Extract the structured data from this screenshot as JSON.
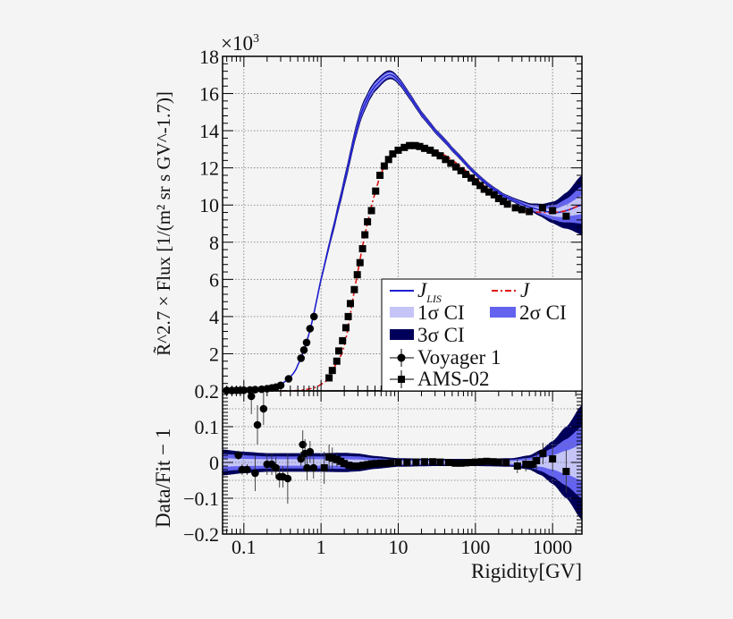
{
  "chart_data": [
    {
      "type": "line",
      "panel": "top",
      "ylabel": "R̃^2.7 × Flux [1/(m² sr s GV^-1.7)]",
      "ylabel_parts": {
        "main": "R̃",
        "exp": "2.7",
        "rest": "× Flux [1/(m",
        "exp2": "2",
        "rest2": " sr s GV",
        "exp3": "-1.7",
        "end": ")]"
      },
      "y_multiplier": "×10",
      "y_multiplier_exp": "3",
      "xscale": "log",
      "xlim": [
        0.053,
        2400
      ],
      "ylim": [
        0,
        18
      ],
      "yticks": [
        "2",
        "4",
        "6",
        "8",
        "10",
        "12",
        "14",
        "16",
        "18"
      ],
      "grid": true,
      "legend_position": "bottom-right",
      "legend": {
        "jlis": "J",
        "jlis_sub": "LIS",
        "j": "J",
        "ci1": "1σ CI",
        "ci1_sym": "1",
        "ci2": "2σ CI",
        "ci2_sym": "2",
        "ci3": "3σ CI",
        "ci3_sym": "3",
        "voyager": "Voyager 1",
        "ams": "AMS-02"
      },
      "colors": {
        "jlis": "#1f1fd0",
        "j": "#e01010",
        "ci1": "#c4c4f6",
        "ci2": "#6363f0",
        "ci3": "#00005a",
        "points": "#000000"
      },
      "series": [
        {
          "name": "J_LIS",
          "style": "solid",
          "x": [
            0.053,
            0.1,
            0.2,
            0.3,
            0.4,
            0.5,
            0.7,
            1,
            1.5,
            2,
            3,
            4,
            5,
            7.5,
            10,
            15,
            20,
            30,
            50,
            100,
            200,
            300,
            500,
            1000,
            1500,
            2400
          ],
          "y": [
            0.02,
            0.04,
            0.12,
            0.35,
            0.75,
            1.4,
            3.1,
            6.0,
            9.0,
            11.25,
            14.3,
            15.7,
            16.4,
            17.0,
            16.7,
            15.7,
            14.9,
            14.0,
            13.0,
            11.7,
            10.7,
            10.3,
            9.9,
            9.6,
            9.7,
            10.0
          ]
        },
        {
          "name": "J",
          "style": "dash-dot",
          "x": [
            0.3,
            0.5,
            0.8,
            1,
            1.27,
            1.6,
            2,
            2.7,
            3.7,
            5.1,
            6.6,
            10,
            16.6,
            25,
            35,
            50,
            88,
            175,
            330,
            500,
            1000,
            1500,
            2400
          ],
          "y": [
            0,
            0.02,
            0.15,
            0.35,
            0.7,
            1.55,
            2.45,
            5.4,
            8.4,
            10.75,
            12.1,
            12.9,
            13.2,
            13.05,
            12.8,
            12.4,
            11.6,
            10.6,
            9.85,
            9.65,
            9.6,
            9.7,
            10.0
          ]
        },
        {
          "name": "Voyager 1",
          "marker": "circle",
          "x": [
            0.06,
            0.07,
            0.08,
            0.09,
            0.1,
            0.12,
            0.14,
            0.17,
            0.2,
            0.23,
            0.26,
            0.3,
            0.38,
            0.55,
            0.6,
            0.65,
            0.72,
            0.81
          ],
          "y": [
            0.02,
            0.02,
            0.03,
            0.03,
            0.04,
            0.05,
            0.07,
            0.09,
            0.12,
            0.16,
            0.2,
            0.3,
            0.65,
            1.76,
            2.2,
            2.6,
            3.35,
            4.0
          ]
        },
        {
          "name": "AMS-02",
          "marker": "square",
          "x": [
            1.27,
            1.4,
            1.6,
            1.7,
            1.9,
            2.1,
            2.25,
            2.4,
            2.7,
            2.95,
            3.2,
            3.45,
            3.7,
            4.0,
            4.5,
            5.1,
            5.8,
            6.6,
            7.5,
            8.5,
            10,
            12,
            14,
            16.6,
            19,
            22,
            26,
            30,
            35,
            41,
            48,
            56,
            65,
            75,
            88,
            100,
            115,
            130,
            150,
            175,
            200,
            230,
            260,
            330,
            400,
            500,
            740,
            1000,
            1500
          ],
          "y": [
            0.7,
            1.1,
            1.6,
            2.15,
            2.7,
            3.4,
            4.0,
            4.7,
            5.45,
            6.25,
            6.9,
            7.65,
            8.4,
            9.1,
            9.7,
            10.75,
            11.6,
            12.1,
            12.45,
            12.75,
            12.95,
            13.1,
            13.2,
            13.2,
            13.15,
            13.05,
            12.95,
            12.8,
            12.65,
            12.45,
            12.25,
            12.05,
            11.85,
            11.65,
            11.45,
            11.25,
            11.05,
            10.85,
            10.7,
            10.55,
            10.35,
            10.2,
            10.05,
            9.85,
            9.75,
            9.65,
            9.85,
            9.7,
            9.4
          ]
        }
      ]
    },
    {
      "type": "scatter",
      "panel": "bottom",
      "ylabel": "Data/Fit − 1",
      "xlabel": "Rigidity[GV]",
      "xscale": "log",
      "xlim": [
        0.053,
        2400
      ],
      "ylim": [
        -0.2,
        0.2
      ],
      "xticks": [
        "0.1",
        "1",
        "10",
        "100",
        "1000"
      ],
      "yticks": [
        "0.2",
        "0.1",
        "0",
        "−0.1",
        "−0.2"
      ],
      "grid": true,
      "bands": {
        "x": [
          0.053,
          0.1,
          0.2,
          0.5,
          1,
          2,
          3,
          5,
          10,
          30,
          100,
          300,
          500,
          700,
          1000,
          1500,
          2400
        ],
        "ci3": [
          0.036,
          0.03,
          0.026,
          0.026,
          0.026,
          0.027,
          0.025,
          0.018,
          0.012,
          0.01,
          0.01,
          0.012,
          0.02,
          0.035,
          0.06,
          0.1,
          0.16
        ],
        "ci2": [
          0.024,
          0.02,
          0.017,
          0.017,
          0.017,
          0.018,
          0.017,
          0.012,
          0.008,
          0.007,
          0.007,
          0.008,
          0.013,
          0.024,
          0.04,
          0.065,
          0.1
        ],
        "ci1": [
          0.012,
          0.01,
          0.009,
          0.009,
          0.009,
          0.009,
          0.008,
          0.006,
          0.004,
          0.003,
          0.003,
          0.004,
          0.007,
          0.012,
          0.02,
          0.033,
          0.05
        ]
      },
      "series": [
        {
          "name": "Voyager 1",
          "marker": "circle",
          "x": [
            0.085,
            0.095,
            0.11,
            0.125,
            0.14,
            0.15,
            0.18,
            0.2,
            0.23,
            0.26,
            0.29,
            0.32,
            0.37,
            0.55,
            0.58,
            0.62,
            0.66,
            0.72,
            0.8
          ],
          "y": [
            0.02,
            -0.02,
            -0.02,
            0.185,
            -0.03,
            0.105,
            0.15,
            -0.005,
            -0.005,
            -0.015,
            -0.04,
            -0.04,
            -0.045,
            0.01,
            0.05,
            0.025,
            -0.015,
            0.03,
            -0.015
          ],
          "err": [
            0.012,
            0.015,
            0.015,
            0.05,
            0.05,
            0.055,
            0.045,
            0.03,
            0.03,
            0.03,
            0.03,
            0.03,
            0.07,
            0.02,
            0.04,
            0.04,
            0.035,
            0.03,
            0.03
          ]
        },
        {
          "name": "AMS-02",
          "marker": "square",
          "x": [
            1.1,
            1.27,
            1.4,
            1.6,
            1.8,
            2,
            2.3,
            2.6,
            3,
            3.5,
            4,
            4.5,
            5.1,
            6,
            7,
            8,
            10,
            13,
            17,
            22,
            28,
            35,
            45,
            55,
            65,
            75,
            88,
            100,
            120,
            140,
            170,
            200,
            250,
            350,
            450,
            550,
            620,
            750,
            1000,
            1500
          ],
          "y": [
            -0.015,
            0.015,
            0.012,
            0.008,
            0.003,
            -0.003,
            -0.008,
            -0.01,
            -0.01,
            -0.008,
            -0.006,
            -0.004,
            -0.003,
            -0.002,
            -0.002,
            -0.001,
            0,
            0,
            0.001,
            0.002,
            0.002,
            0.001,
            0,
            -0.002,
            -0.002,
            -0.001,
            0,
            0.001,
            0.002,
            0.003,
            0.002,
            0.001,
            0,
            -0.01,
            -0.005,
            -0.005,
            0.005,
            0.025,
            0.01,
            -0.025
          ],
          "err": [
            0.045,
            0.035,
            0.03,
            0.02,
            0.015,
            0.012,
            0.01,
            0.008,
            0.006,
            0.005,
            0.005,
            0.005,
            0.005,
            0.004,
            0.004,
            0.004,
            0.004,
            0.004,
            0.004,
            0.004,
            0.004,
            0.005,
            0.006,
            0.007,
            0.008,
            0.008,
            0.008,
            0.008,
            0.009,
            0.01,
            0.01,
            0.01,
            0.012,
            0.02,
            0.02,
            0.02,
            0.025,
            0.03,
            0.035,
            0.06
          ]
        }
      ]
    }
  ]
}
